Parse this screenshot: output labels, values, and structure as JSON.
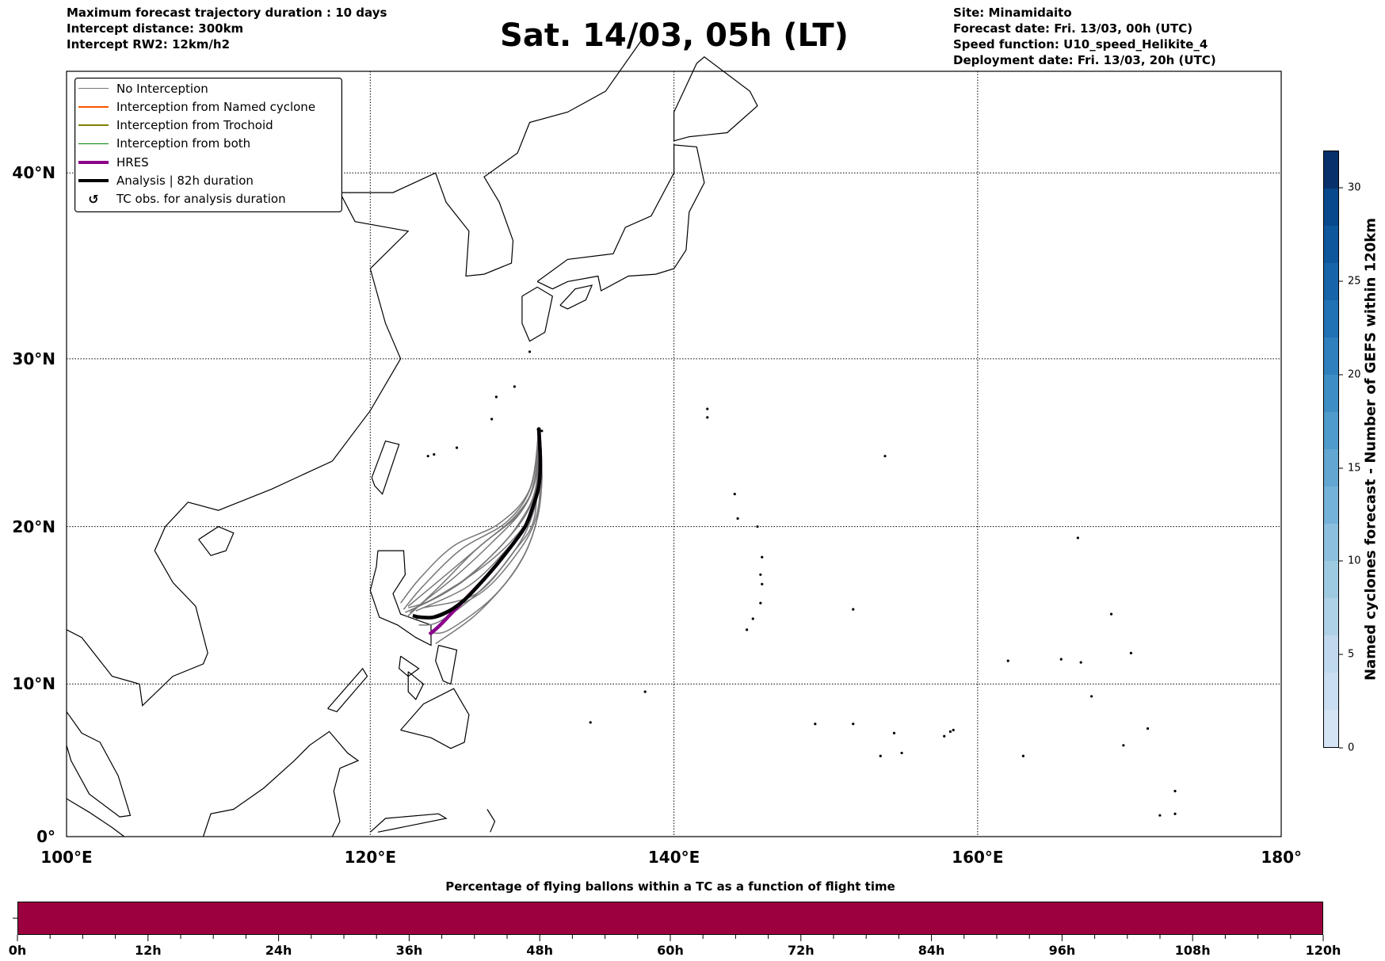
{
  "header": {
    "left": [
      "Maximum forecast trajectory duration : 10 days",
      "Intercept distance: 300km",
      "Intercept RW2: 12km/h2"
    ],
    "title": "Sat. 14/03, 05h (LT)",
    "right": [
      "Site: Minamidaito",
      "Forecast date: Fri. 13/03, 00h (UTC)",
      "Speed function: U10_speed_Helikite_4",
      "Deployment date: Fri. 13/03, 20h (UTC)"
    ]
  },
  "legend": [
    {
      "label": "No Interception",
      "color": "#777777",
      "kind": "thin"
    },
    {
      "label": "Interception from Named cyclone",
      "color": "#ff5500",
      "kind": "thin"
    },
    {
      "label": "Interception from Trochoid",
      "color": "#808000",
      "kind": "thin"
    },
    {
      "label": "Interception from both",
      "color": "#008000",
      "kind": "thin"
    },
    {
      "label": "HRES",
      "color": "#8b008b",
      "kind": "thick"
    },
    {
      "label": "Analysis | 82h duration",
      "color": "#000000",
      "kind": "thick"
    },
    {
      "label": "TC obs. for analysis duration",
      "color": "#000000",
      "kind": "marker",
      "icon": "↺"
    }
  ],
  "map": {
    "lat_labels": [
      {
        "lat": 0,
        "label": "0°"
      },
      {
        "lat": 10,
        "label": "10°N"
      },
      {
        "lat": 20,
        "label": "20°N"
      },
      {
        "lat": 30,
        "label": "30°N"
      },
      {
        "lat": 40,
        "label": "40°N"
      }
    ],
    "lon_labels": [
      {
        "lon": 100,
        "label": "100°E"
      },
      {
        "lon": 120,
        "label": "120°E"
      },
      {
        "lon": 140,
        "label": "140°E"
      },
      {
        "lon": 160,
        "label": "160°E"
      },
      {
        "lon": 180,
        "label": "180°"
      }
    ],
    "lon_range": [
      100,
      180
    ],
    "lat_range": [
      0,
      45
    ],
    "site": {
      "name": "Minamidaito",
      "lon": 131.1,
      "lat": 25.9
    },
    "analysis_track": [
      [
        131.1,
        25.9
      ],
      [
        131.2,
        24
      ],
      [
        131.1,
        22.5
      ],
      [
        130.7,
        21.2
      ],
      [
        130.2,
        20
      ],
      [
        129.3,
        18.8
      ],
      [
        128.3,
        17.6
      ],
      [
        127.2,
        16.4
      ],
      [
        126.2,
        15.4
      ],
      [
        125.2,
        14.7
      ],
      [
        124.2,
        14.3
      ],
      [
        123.3,
        14.3
      ],
      [
        122.8,
        14.4
      ]
    ],
    "hres_track": [
      [
        131.1,
        25.9
      ],
      [
        131.2,
        24
      ],
      [
        131.1,
        22.5
      ],
      [
        130.7,
        21.2
      ],
      [
        130.2,
        20
      ],
      [
        129.3,
        18.8
      ],
      [
        128.3,
        17.6
      ],
      [
        127.2,
        16.4
      ],
      [
        126.2,
        15.4
      ],
      [
        125.3,
        14.5
      ],
      [
        124.5,
        13.7
      ],
      [
        123.9,
        13.2
      ]
    ],
    "ensemble_tracks": [
      [
        [
          131.1,
          25.9
        ],
        [
          130.6,
          22.5
        ],
        [
          129,
          20.3
        ],
        [
          126,
          18.6
        ],
        [
          123.5,
          16.3
        ],
        [
          122.2,
          14.8
        ]
      ],
      [
        [
          131.1,
          25.9
        ],
        [
          130.8,
          22.8
        ],
        [
          129.8,
          20.8
        ],
        [
          127.5,
          19
        ],
        [
          125,
          17
        ],
        [
          122.5,
          15
        ]
      ],
      [
        [
          131.1,
          25.9
        ],
        [
          130.9,
          23
        ],
        [
          130,
          21
        ],
        [
          128,
          19
        ],
        [
          125.5,
          16.8
        ],
        [
          122.6,
          14.6
        ]
      ],
      [
        [
          131.1,
          25.9
        ],
        [
          131,
          23
        ],
        [
          130.4,
          21
        ],
        [
          128.8,
          19
        ],
        [
          126,
          16.5
        ],
        [
          122.8,
          14.8
        ]
      ],
      [
        [
          131.1,
          25.9
        ],
        [
          131,
          23
        ],
        [
          130.5,
          20.5
        ],
        [
          129,
          18.6
        ],
        [
          126.5,
          16.3
        ],
        [
          123,
          14.7
        ]
      ],
      [
        [
          131.1,
          25.9
        ],
        [
          131,
          22.5
        ],
        [
          130.7,
          20.2
        ],
        [
          129.5,
          18.5
        ],
        [
          127,
          15.8
        ],
        [
          123.5,
          14.9
        ]
      ],
      [
        [
          131.1,
          25.9
        ],
        [
          131.2,
          22.8
        ],
        [
          130.9,
          20.5
        ],
        [
          129.8,
          18.5
        ],
        [
          127.5,
          16
        ],
        [
          124.5,
          14.5
        ],
        [
          123,
          14.2
        ]
      ],
      [
        [
          131.1,
          25.9
        ],
        [
          131.3,
          23
        ],
        [
          131,
          20.5
        ],
        [
          130,
          18
        ],
        [
          128,
          15.5
        ],
        [
          125.2,
          13.5
        ],
        [
          124,
          13.3
        ]
      ],
      [
        [
          131.1,
          25.9
        ],
        [
          131.3,
          22.8
        ],
        [
          130.8,
          19.8
        ],
        [
          129.5,
          17.2
        ],
        [
          127,
          14.5
        ],
        [
          124.3,
          12.6
        ]
      ],
      [
        [
          131.1,
          25.9
        ],
        [
          131.2,
          23
        ],
        [
          130.4,
          20
        ],
        [
          128.8,
          17.6
        ],
        [
          126.8,
          15.6
        ],
        [
          124.5,
          14
        ],
        [
          123.2,
          13.8
        ]
      ],
      [
        [
          131.1,
          25.9
        ],
        [
          130.5,
          22.3
        ],
        [
          128.5,
          20.2
        ],
        [
          125.5,
          18.8
        ],
        [
          123.3,
          16.8
        ],
        [
          122,
          15.2
        ]
      ],
      [
        [
          131.1,
          25.9
        ],
        [
          130.8,
          22.6
        ],
        [
          129.5,
          20.6
        ],
        [
          127,
          18.6
        ],
        [
          124.5,
          16.2
        ],
        [
          122.4,
          14.3
        ]
      ],
      [
        [
          131.1,
          25.9
        ],
        [
          130.9,
          22.4
        ],
        [
          129.8,
          20.2
        ],
        [
          128,
          18.2
        ],
        [
          125.2,
          16
        ],
        [
          122.3,
          14.6
        ]
      ],
      [
        [
          131.1,
          25.9
        ],
        [
          131.1,
          22.9
        ],
        [
          130.6,
          20.8
        ],
        [
          129.2,
          19
        ],
        [
          127,
          17.2
        ],
        [
          124,
          15.4
        ],
        [
          122.5,
          14.9
        ]
      ]
    ]
  },
  "colorbar": {
    "label": "Named cyclones forecast - Number of GEFS within 120km",
    "min": 0,
    "max": 32,
    "step": 2,
    "ticks": [
      "0",
      "5",
      "10",
      "15",
      "20",
      "25",
      "30"
    ],
    "colors": [
      "#d4e4f4",
      "#cadef1",
      "#bfd8ed",
      "#afd1e7",
      "#9ecae1",
      "#8bbfdd",
      "#74b2d9",
      "#62a6d1",
      "#4f9bcb",
      "#3e8ec4",
      "#2f80bc",
      "#2171b5",
      "#1864aa",
      "#0f579d",
      "#08488c",
      "#08306b"
    ]
  },
  "timeline": {
    "title": "Percentage of flying ballons within a TC as a function of flight time",
    "labels": [
      "0h",
      "12h",
      "24h",
      "36h",
      "48h",
      "60h",
      "72h",
      "84h",
      "96h",
      "108h",
      "120h"
    ],
    "max_hours": 120,
    "fill_color": "#9c003e",
    "percent": 100
  }
}
